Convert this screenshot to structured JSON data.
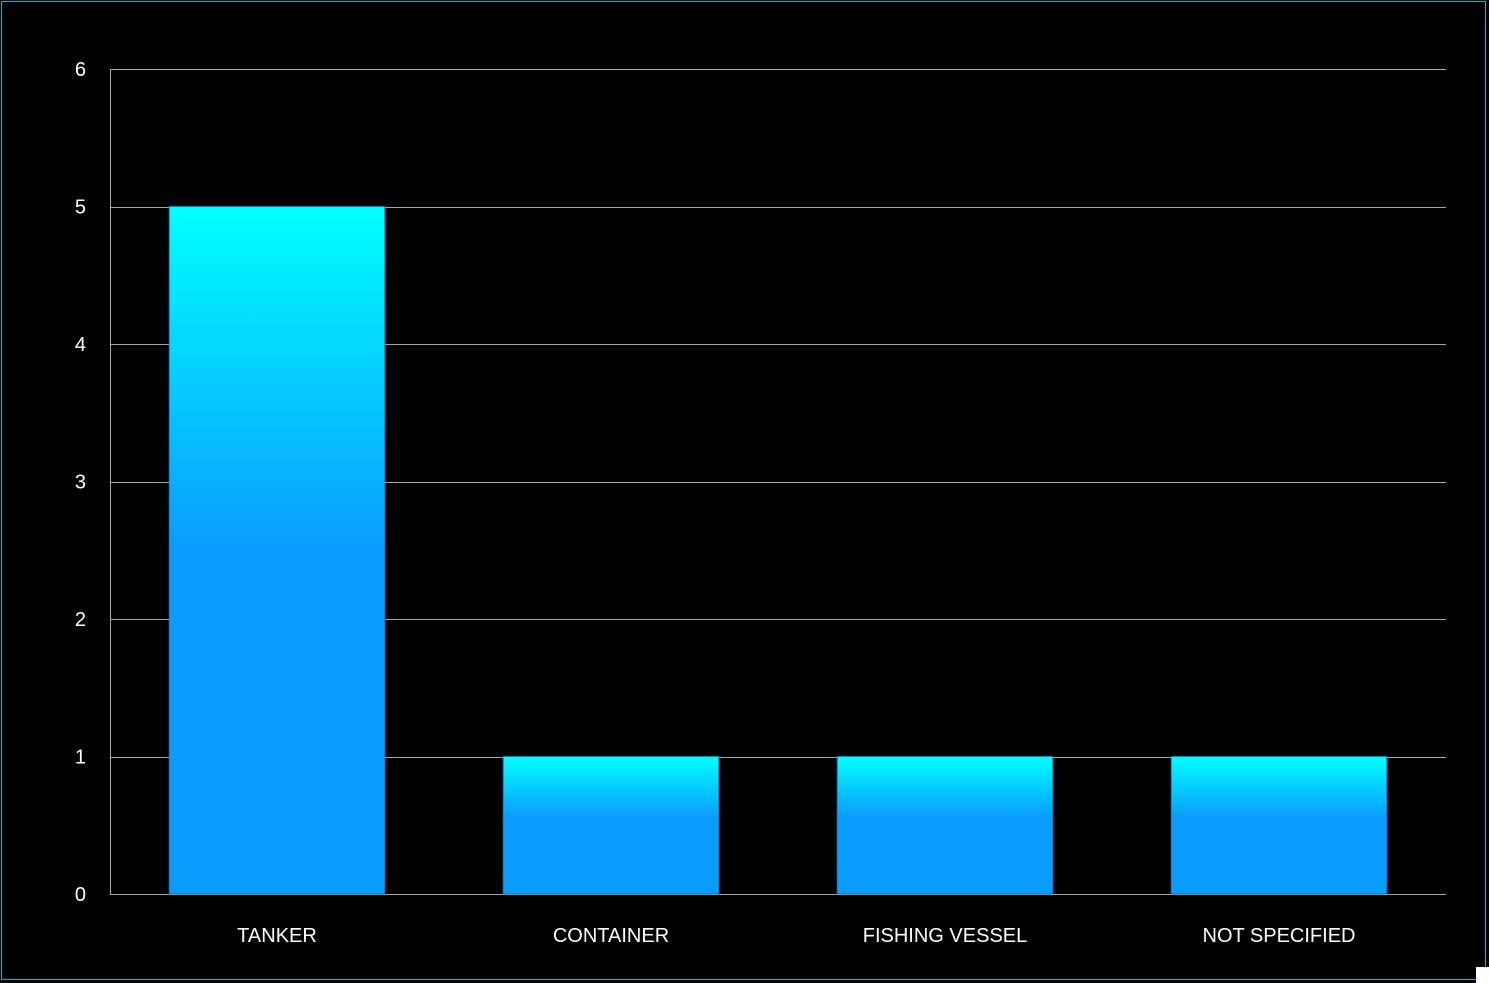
{
  "chart_data": {
    "type": "bar",
    "categories": [
      "TANKER",
      "CONTAINER",
      "FISHING VESSEL",
      "NOT SPECIFIED"
    ],
    "values": [
      5,
      1,
      1,
      1
    ],
    "title": "",
    "xlabel": "",
    "ylabel": "",
    "ylim": [
      0,
      6
    ],
    "yticks": [
      "0",
      "1",
      "2",
      "3",
      "4",
      "5",
      "6"
    ],
    "grid": true,
    "legend": "none",
    "colors": {
      "background": "#000000",
      "frame": "#1ab2c9",
      "gridline": "#a6a6a6",
      "bar_top": "#00ffff",
      "bar_bottom": "#0a9cff",
      "text": "#ffffff"
    }
  }
}
